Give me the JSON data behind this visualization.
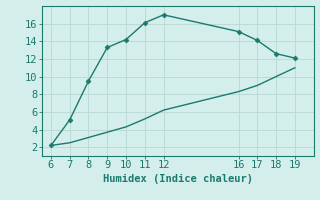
{
  "xlabel": "Humidex (Indice chaleur)",
  "bg_color": "#d4eeeb",
  "grid_color": "#b8d8d4",
  "line_color": "#1a7a6e",
  "upper_x": [
    6,
    7,
    8,
    9,
    10,
    11,
    12,
    16,
    17,
    18,
    19
  ],
  "upper_y": [
    2.2,
    5.1,
    9.5,
    13.3,
    14.2,
    16.1,
    17.0,
    15.1,
    14.1,
    12.6,
    12.1
  ],
  "lower_x": [
    6,
    7,
    8,
    9,
    10,
    11,
    12,
    16,
    17,
    18,
    19
  ],
  "lower_y": [
    2.2,
    2.5,
    3.1,
    3.7,
    4.3,
    5.2,
    6.2,
    8.3,
    9.0,
    10.0,
    11.0
  ],
  "xlim": [
    5.5,
    20.0
  ],
  "ylim": [
    1.0,
    18.0
  ],
  "xticks": [
    6,
    7,
    8,
    9,
    10,
    11,
    12,
    16,
    17,
    18,
    19
  ],
  "yticks": [
    2,
    4,
    6,
    8,
    10,
    12,
    14,
    16
  ],
  "fontsize": 7.5,
  "marker": "D",
  "markersize": 2.5,
  "linewidth": 1.0
}
